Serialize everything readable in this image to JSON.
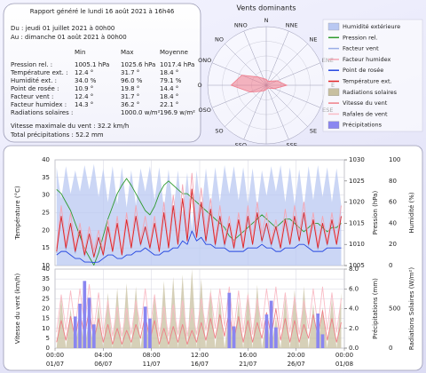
{
  "report": {
    "title": "Rapport généré le lundi 16 août 2021 à 16h46",
    "from": "Du : jeudi 01 juillet 2021 à 00h00",
    "to": "Au : dimanche 01 août 2021 à 00h00",
    "columns": [
      "Min",
      "Max",
      "Moyenne"
    ],
    "rows": [
      [
        "Pression rel. :",
        "1005.1 hPa",
        "1025.6 hPa",
        "1017.4 hPa"
      ],
      [
        "Température ext. :",
        "12.4 °",
        "31.7 °",
        "18.4 °"
      ],
      [
        "Humidité ext. :",
        "34.0 %",
        "96.0 %",
        "79.1 %"
      ],
      [
        "Point de rosée :",
        "10.9 °",
        "19.8 °",
        "14.4 °"
      ],
      [
        "Facteur vent :",
        "12.4 °",
        "31.7 °",
        "18.4 °"
      ],
      [
        "Facteur humidex :",
        "14.3 °",
        "36.2 °",
        "22.1 °"
      ],
      [
        "Radiations solaires :",
        null,
        "1000.0 w/m²",
        "196.9 w/m²"
      ]
    ],
    "wind_max": "Vitesse maximale du vent : 32.2 km/h",
    "rain_total": "Total précipitations : 52.2 mm"
  },
  "chart_data": [
    {
      "type": "radar",
      "title": "Vents dominants",
      "categories": [
        "N",
        "NNE",
        "NE",
        "ENE",
        "E",
        "ESE",
        "SE",
        "SSE",
        "S",
        "SSO",
        "SO",
        "OSO",
        "O",
        "ONO",
        "NO",
        "NNO"
      ],
      "values": [
        4,
        3,
        4,
        8,
        14,
        6,
        3,
        2,
        3,
        4,
        6,
        12,
        24,
        18,
        8,
        5
      ],
      "color": "#f07a8a",
      "rlim": [
        0,
        40
      ]
    },
    {
      "type": "line",
      "x": [
        4,
        16,
        28,
        40,
        52,
        64,
        76,
        88,
        100,
        112,
        124,
        136,
        148,
        160,
        172,
        184,
        196,
        208,
        220,
        232,
        244,
        256,
        268,
        280,
        292,
        304,
        316,
        328,
        340,
        352,
        364,
        376,
        388,
        400,
        412,
        424,
        436,
        448,
        460,
        472,
        484,
        496,
        508,
        520,
        532,
        544,
        556,
        568,
        580,
        592,
        604,
        616,
        628,
        640,
        652,
        664,
        676,
        688,
        700,
        712,
        724,
        736
      ],
      "xlim": [
        0,
        744
      ],
      "ylabel": "Température (°C)",
      "ylim": [
        10,
        40
      ],
      "yticks": [
        10,
        15,
        20,
        25,
        30,
        35,
        40
      ],
      "y2label": "Pression (hPa)",
      "y2lim": [
        1005,
        1030
      ],
      "y2ticks": [
        1005,
        1010,
        1015,
        1020,
        1025,
        1030
      ],
      "y3label": "Humidité (%)",
      "y3lim": [
        0,
        100
      ],
      "y3ticks": [
        0,
        20,
        40,
        60,
        80,
        100
      ],
      "grid": true,
      "series": [
        {
          "name": "Humidité extérieure",
          "color": "#b9c8f2",
          "kind": "area",
          "axis": "y3",
          "values": [
            93,
            63,
            94,
            68,
            90,
            70,
            95,
            72,
            96,
            65,
            92,
            60,
            94,
            58,
            93,
            55,
            90,
            57,
            92,
            70,
            94,
            62,
            93,
            54,
            91,
            50,
            90,
            48,
            88,
            34,
            90,
            50,
            92,
            55,
            93,
            60,
            95,
            68,
            94,
            62,
            93,
            58,
            92,
            55,
            90,
            66,
            94,
            70,
            95,
            60,
            93,
            58,
            91,
            55,
            94,
            62,
            95,
            65,
            93,
            60,
            92,
            57
          ]
        },
        {
          "name": "Pression rel.",
          "color": "#2e9a2e",
          "kind": "line",
          "axis": "y2",
          "values": [
            1023,
            1022,
            1020,
            1018,
            1015,
            1012,
            1009,
            1007,
            1005.1,
            1008,
            1012,
            1016,
            1019,
            1022,
            1024,
            1025.6,
            1024,
            1022,
            1020,
            1018,
            1017,
            1019,
            1022,
            1024,
            1025,
            1024,
            1023,
            1022,
            1022,
            1021,
            1020,
            1019,
            1018,
            1017,
            1016,
            1015,
            1014,
            1012,
            1011,
            1012,
            1013,
            1014,
            1015,
            1016,
            1017,
            1016,
            1015,
            1014,
            1015,
            1016,
            1016,
            1015,
            1014,
            1013,
            1014,
            1015,
            1015,
            1014,
            1013,
            1014,
            1014,
            1015
          ]
        },
        {
          "name": "Facteur vent",
          "color": "#9aaee6",
          "kind": "line",
          "axis": "y",
          "values": [
            13.5,
            24,
            14.5,
            22,
            13.5,
            20,
            12.6,
            19,
            12.4,
            18,
            12.8,
            21,
            14,
            22,
            13,
            23,
            15,
            24,
            15.5,
            21,
            14.6,
            22,
            14,
            25,
            15,
            27,
            16,
            29,
            17,
            31.7,
            18,
            28,
            16.6,
            26,
            15.5,
            24,
            15.4,
            22,
            14.7,
            23,
            15,
            24,
            16,
            25,
            16.5,
            22,
            15.4,
            21,
            14.7,
            23,
            16,
            24,
            17,
            25,
            15.5,
            23,
            14.5,
            22,
            15.7,
            23,
            16,
            24
          ]
        },
        {
          "name": "Facteur humidex",
          "color": "#f4a6b4",
          "kind": "line",
          "axis": "y",
          "values": [
            15,
            27,
            16,
            25,
            15,
            22,
            14,
            21,
            14.3,
            20,
            14,
            23,
            15,
            24,
            14,
            25,
            16,
            27,
            17,
            24,
            16,
            24,
            15,
            28,
            16,
            30,
            18,
            33,
            19,
            36.2,
            20,
            32,
            19,
            29,
            17,
            27,
            17,
            24,
            16,
            25,
            16,
            27,
            17,
            28,
            19,
            25,
            17,
            23,
            16,
            26,
            17,
            27,
            19,
            28,
            17,
            25,
            16,
            24,
            17,
            25,
            17,
            27
          ]
        },
        {
          "name": "Point de rosée",
          "color": "#2446e0",
          "kind": "line",
          "axis": "y",
          "values": [
            13,
            14,
            14,
            13,
            12,
            12,
            11,
            11,
            10.9,
            11,
            12,
            13,
            13,
            12,
            12,
            13,
            13,
            14,
            14,
            15,
            14,
            13,
            13,
            14,
            14,
            15,
            15,
            17,
            16,
            19.8,
            17,
            18,
            16,
            16,
            15,
            15,
            15,
            14,
            14,
            14,
            14,
            15,
            15,
            15,
            16,
            15,
            15,
            14,
            14,
            15,
            15,
            15,
            16,
            16,
            15,
            14,
            14,
            14,
            15,
            15,
            15,
            15
          ]
        },
        {
          "name": "Température ext.",
          "color": "#e02424",
          "kind": "line",
          "axis": "y",
          "values": [
            14,
            24,
            15,
            22,
            14,
            20,
            13,
            19,
            12.4,
            18,
            13,
            21,
            14,
            22,
            13,
            23,
            15,
            24,
            16,
            21,
            15,
            22,
            14,
            25,
            15,
            27,
            16,
            29,
            17,
            31.7,
            18,
            28,
            17,
            26,
            16,
            24,
            16,
            22,
            15,
            23,
            15,
            24,
            16,
            25,
            17,
            22,
            16,
            21,
            15,
            23,
            16,
            24,
            17,
            25,
            16,
            23,
            15,
            22,
            16,
            23,
            16,
            24
          ]
        }
      ]
    },
    {
      "type": "bar",
      "ylabel": "Vitesse du vent (km/h)",
      "ylim": [
        0,
        40
      ],
      "yticks": [
        0,
        5,
        10,
        15,
        20,
        25,
        30,
        35,
        40
      ],
      "y2label": "Précipitations (mm)",
      "y2lim": [
        0,
        8
      ],
      "y2ticks": [
        {
          "value": 0,
          "label": "0.0"
        },
        {
          "value": 2,
          "label": "2.0"
        },
        {
          "value": 4,
          "label": "4.0"
        },
        {
          "value": 6,
          "label": "6.0"
        },
        {
          "value": 8,
          "label": "8.0"
        }
      ],
      "y3label": "Radiations Solaires (W/m²)",
      "y3lim": [
        0,
        1000
      ],
      "y3ticks": [
        0,
        500
      ],
      "grid": true,
      "xticks": [
        {
          "value": 0,
          "label": "00:00",
          "date": "01/07"
        },
        {
          "value": 124,
          "label": "04:00",
          "date": "06/07"
        },
        {
          "value": 248,
          "label": "08:00",
          "date": "11/07"
        },
        {
          "value": 372,
          "label": "12:00",
          "date": "16/07"
        },
        {
          "value": 496,
          "label": "16:00",
          "date": "21/07"
        },
        {
          "value": 620,
          "label": "20:00",
          "date": "26/07"
        },
        {
          "value": 744,
          "label": "00:00",
          "date": "01/08"
        }
      ],
      "series": [
        {
          "name": "Radiations solaires",
          "color": "#c8c0a0",
          "kind": "area",
          "axis": "y3",
          "values": [
            0,
            650,
            0,
            500,
            0,
            420,
            0,
            380,
            0,
            560,
            0,
            700,
            0,
            760,
            0,
            820,
            0,
            780,
            0,
            450,
            0,
            690,
            0,
            850,
            0,
            900,
            0,
            930,
            0,
            1000,
            0,
            880,
            0,
            760,
            0,
            640,
            0,
            480,
            0,
            600,
            0,
            720,
            0,
            800,
            0,
            420,
            0,
            390,
            0,
            650,
            0,
            740,
            0,
            780,
            0,
            560,
            0,
            520,
            0,
            630,
            0,
            700
          ]
        },
        {
          "name": "Vitesse du vent",
          "color": "#f07f88",
          "kind": "line",
          "axis": "y",
          "values": [
            3,
            14,
            4,
            16,
            5,
            18,
            6,
            20,
            4,
            15,
            3,
            12,
            2,
            10,
            2,
            9,
            3,
            12,
            5,
            17,
            4,
            14,
            2,
            10,
            2,
            11,
            3,
            12,
            2,
            9,
            3,
            13,
            4,
            15,
            5,
            17,
            6,
            19,
            4,
            16,
            3,
            14,
            3,
            13,
            5,
            18,
            6,
            20,
            4,
            15,
            3,
            14,
            3,
            12,
            5,
            17,
            6,
            19,
            4,
            15,
            3,
            13
          ]
        },
        {
          "name": "Rafales de vent",
          "color": "#f9bcc6",
          "kind": "line",
          "axis": "y",
          "values": [
            8,
            27,
            9,
            29,
            10,
            30,
            12,
            32.2,
            9,
            28,
            7,
            24,
            6,
            21,
            6,
            20,
            7,
            24,
            10,
            30,
            9,
            27,
            6,
            21,
            6,
            22,
            7,
            24,
            6,
            20,
            7,
            25,
            9,
            28,
            10,
            30,
            11,
            31,
            9,
            29,
            8,
            27,
            7,
            25,
            10,
            30,
            12,
            31,
            9,
            28,
            8,
            26,
            7,
            24,
            10,
            30,
            11,
            31,
            9,
            28,
            8,
            25
          ]
        },
        {
          "name": "Précipitations",
          "color": "#8a86f0",
          "kind": "bar",
          "axis": "y2",
          "values": [
            0,
            0,
            0,
            0,
            3.2,
            4.5,
            6.8,
            5.1,
            2.4,
            0,
            0,
            0,
            0,
            0,
            0,
            0,
            0,
            0,
            0,
            4.2,
            3.0,
            0,
            0,
            0,
            0,
            0,
            0,
            0,
            0,
            0,
            0,
            0,
            0,
            0,
            0,
            0,
            0,
            5.6,
            2.2,
            0,
            0,
            0,
            0,
            0,
            0,
            3.4,
            4.8,
            2.1,
            0,
            0,
            0,
            0,
            0,
            0,
            0,
            0,
            3.5,
            1.4,
            0,
            0,
            0,
            0
          ]
        }
      ]
    }
  ]
}
